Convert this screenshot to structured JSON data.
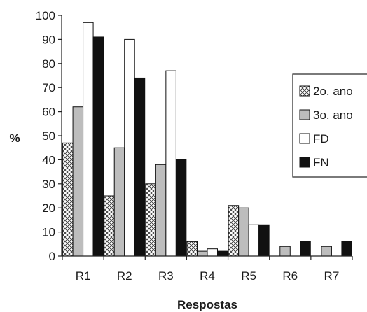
{
  "chart_data": {
    "type": "bar",
    "title": "",
    "xlabel": "Respostas",
    "ylabel": "%",
    "ylim": [
      0,
      100
    ],
    "yticks": [
      0,
      10,
      20,
      30,
      40,
      50,
      60,
      70,
      80,
      90,
      100
    ],
    "grid": false,
    "legend_position": "right",
    "categories": [
      "R1",
      "R2",
      "R3",
      "R4",
      "R5",
      "R6",
      "R7"
    ],
    "series": [
      {
        "name": "2o. ano",
        "fill": "crosshatch",
        "color": "#ffffff",
        "values": [
          47,
          25,
          30,
          6,
          21,
          0,
          0
        ]
      },
      {
        "name": "3o. ano",
        "fill": "solid",
        "color": "#bdbdbd",
        "values": [
          62,
          45,
          38,
          2,
          20,
          4,
          4
        ]
      },
      {
        "name": "FD",
        "fill": "solid",
        "color": "#ffffff",
        "values": [
          97,
          90,
          77,
          3,
          13,
          0,
          0
        ]
      },
      {
        "name": "FN",
        "fill": "solid",
        "color": "#111111",
        "values": [
          91,
          74,
          40,
          2,
          13,
          6,
          6
        ]
      }
    ]
  }
}
